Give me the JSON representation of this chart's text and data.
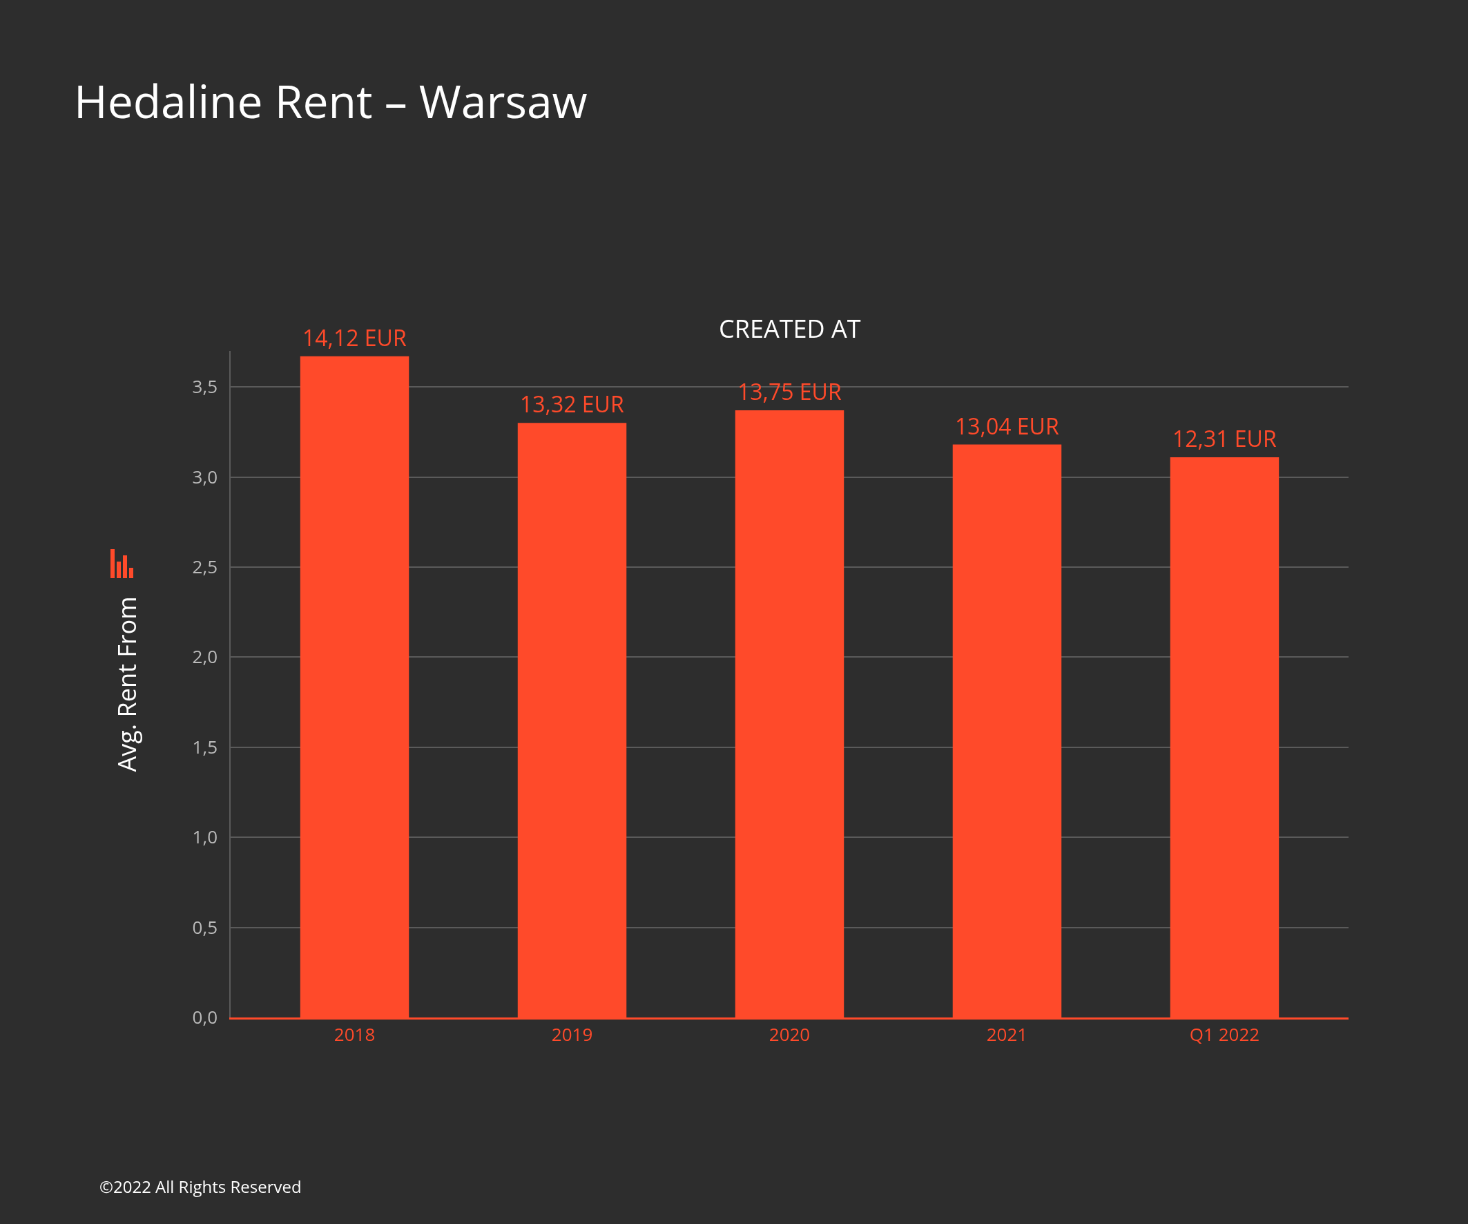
{
  "chart_data": {
    "type": "bar",
    "title": "Hedaline Rent – Warsaw",
    "xlabel": "CREATED AT",
    "ylabel": "Avg. Rent From",
    "categories": [
      "2018",
      "2019",
      "2020",
      "2021",
      "Q1 2022"
    ],
    "values": [
      3.67,
      3.3,
      3.37,
      3.18,
      3.11
    ],
    "color": "#ff4a2a",
    "ylim": [
      0,
      3.7
    ],
    "yticks": [
      {
        "value": 0,
        "label": "0,0"
      },
      {
        "value": 0.5,
        "label": "0,5"
      },
      {
        "value": 1,
        "label": "1,0"
      },
      {
        "value": 1.5,
        "label": "1,5"
      },
      {
        "value": 2,
        "label": "2,0"
      },
      {
        "value": 2.5,
        "label": "2,5"
      },
      {
        "value": 3,
        "label": "3,0"
      },
      {
        "value": 3.5,
        "label": "3,5"
      }
    ],
    "grid": "y",
    "annotations": [
      {
        "text": "14,12 EUR",
        "x": "2018",
        "y": 3.67
      },
      {
        "text": "13,32 EUR",
        "x": "2019",
        "y": 3.3
      },
      {
        "text": "13,75 EUR",
        "x": "2020",
        "y": 3.37
      },
      {
        "text": "13,04 EUR",
        "x": "2021",
        "y": 3.18
      },
      {
        "text": "12,31 EUR",
        "x": "Q1 2022",
        "y": 3.11
      },
      "©2022 All Rights Reserved"
    ]
  }
}
